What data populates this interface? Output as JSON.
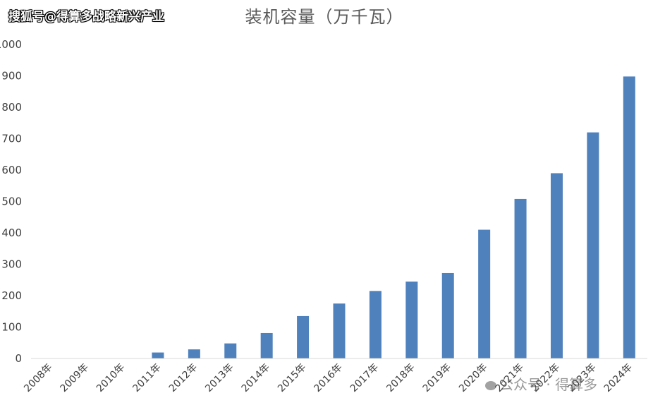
{
  "source_mark": "搜狐号@得算多战略新兴产业",
  "watermark": "公众号 · 得算多",
  "chart_data": {
    "type": "bar",
    "title": "装机容量（万千瓦）",
    "categories": [
      "2008年",
      "2009年",
      "2010年",
      "2011年",
      "2012年",
      "2013年",
      "2014年",
      "2015年",
      "2016年",
      "2017年",
      "2018年",
      "2019年",
      "2020年",
      "2021年",
      "2022年",
      "2023年",
      "2024年"
    ],
    "values": [
      0,
      0,
      0,
      19,
      29,
      48,
      81,
      135,
      175,
      215,
      245,
      272,
      410,
      508,
      590,
      720,
      898
    ],
    "ylim": [
      0,
      1000
    ],
    "yticks": [
      0,
      100,
      200,
      300,
      400,
      500,
      600,
      700,
      800,
      900,
      1000
    ],
    "bar_color": "#4f81bd",
    "grid": false,
    "legend": "none"
  }
}
